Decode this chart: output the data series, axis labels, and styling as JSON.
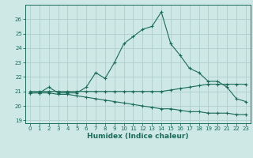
{
  "xlabel": "Humidex (Indice chaleur)",
  "ylabel": "",
  "background_color": "#cde8e5",
  "grid_color": "#b0cfcc",
  "line_color": "#1a6b5a",
  "xlim": [
    -0.5,
    23.5
  ],
  "ylim": [
    18.8,
    27.0
  ],
  "yticks": [
    19,
    20,
    21,
    22,
    23,
    24,
    25,
    26
  ],
  "xticks": [
    0,
    1,
    2,
    3,
    4,
    5,
    6,
    7,
    8,
    9,
    10,
    11,
    12,
    13,
    14,
    15,
    16,
    17,
    18,
    19,
    20,
    21,
    22,
    23
  ],
  "series1_x": [
    0,
    1,
    2,
    3,
    4,
    5,
    6,
    7,
    8,
    9,
    10,
    11,
    12,
    13,
    14,
    15,
    16,
    17,
    18,
    19,
    20,
    21,
    22,
    23
  ],
  "series1_y": [
    20.9,
    20.9,
    21.3,
    20.9,
    20.9,
    20.9,
    21.3,
    22.3,
    21.9,
    23.0,
    24.3,
    24.8,
    25.3,
    25.5,
    26.5,
    24.3,
    23.5,
    22.6,
    22.3,
    21.7,
    21.7,
    21.3,
    20.5,
    20.3
  ],
  "series2_x": [
    0,
    1,
    2,
    3,
    4,
    5,
    6,
    7,
    8,
    9,
    10,
    11,
    12,
    13,
    14,
    15,
    16,
    17,
    18,
    19,
    20,
    21,
    22,
    23
  ],
  "series2_y": [
    21.0,
    21.0,
    21.0,
    21.0,
    21.0,
    21.0,
    21.0,
    21.0,
    21.0,
    21.0,
    21.0,
    21.0,
    21.0,
    21.0,
    21.0,
    21.1,
    21.2,
    21.3,
    21.4,
    21.5,
    21.5,
    21.5,
    21.5,
    21.5
  ],
  "series3_x": [
    0,
    1,
    2,
    3,
    4,
    5,
    6,
    7,
    8,
    9,
    10,
    11,
    12,
    13,
    14,
    15,
    16,
    17,
    18,
    19,
    20,
    21,
    22,
    23
  ],
  "series3_y": [
    20.9,
    20.9,
    20.9,
    20.8,
    20.8,
    20.7,
    20.6,
    20.5,
    20.4,
    20.3,
    20.2,
    20.1,
    20.0,
    19.9,
    19.8,
    19.8,
    19.7,
    19.6,
    19.6,
    19.5,
    19.5,
    19.5,
    19.4,
    19.4
  ],
  "tick_fontsize": 5.0,
  "xlabel_fontsize": 6.5
}
